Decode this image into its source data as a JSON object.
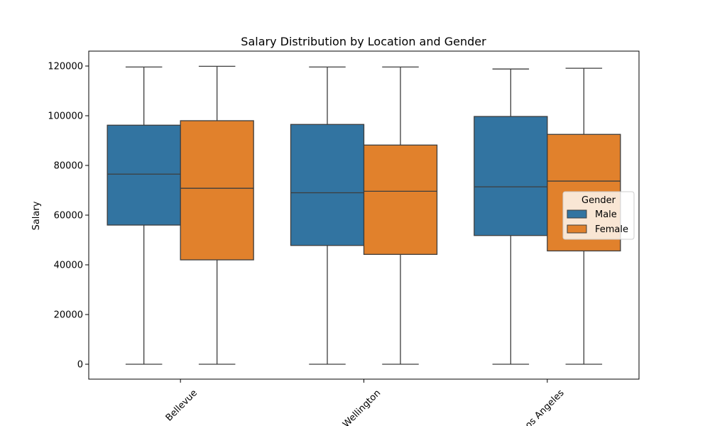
{
  "chart_data": {
    "type": "box",
    "title": "Salary Distribution by Location and Gender",
    "xlabel": "",
    "ylabel": "Salary",
    "categories": [
      "Bellevue",
      "Wellington",
      "Los Angeles"
    ],
    "ylim": [
      -6000,
      126000
    ],
    "yticks": [
      0,
      20000,
      40000,
      60000,
      80000,
      100000,
      120000
    ],
    "series": [
      {
        "name": "Male",
        "color": "#3274a1",
        "boxes": [
          {
            "min": 0,
            "q1": 56000,
            "median": 76500,
            "q3": 96200,
            "max": 119600
          },
          {
            "min": 0,
            "q1": 47800,
            "median": 69000,
            "q3": 96500,
            "max": 119600
          },
          {
            "min": 0,
            "q1": 51800,
            "median": 71400,
            "q3": 99700,
            "max": 118800
          }
        ]
      },
      {
        "name": "Female",
        "color": "#e1812c",
        "boxes": [
          {
            "min": 0,
            "q1": 42000,
            "median": 70800,
            "q3": 98000,
            "max": 119900
          },
          {
            "min": 0,
            "q1": 44200,
            "median": 69600,
            "q3": 88200,
            "max": 119600
          },
          {
            "min": 0,
            "q1": 45600,
            "median": 73700,
            "q3": 92500,
            "max": 119100
          }
        ]
      }
    ],
    "legend": {
      "title": "Gender",
      "position": "right"
    }
  }
}
